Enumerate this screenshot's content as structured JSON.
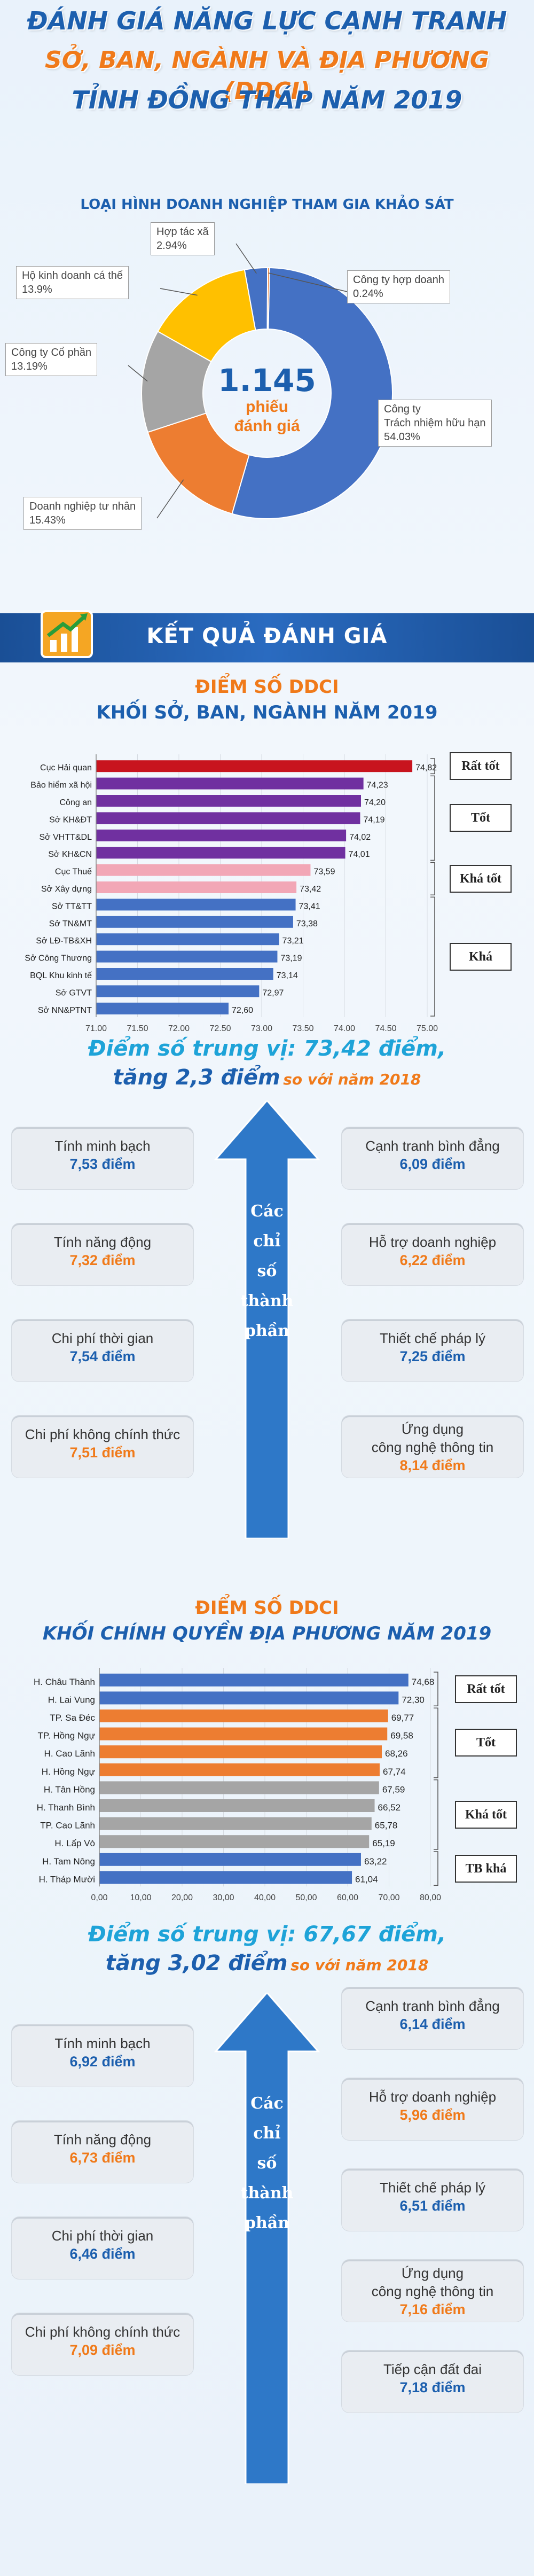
{
  "header": {
    "line1": "ĐÁNH GIÁ NĂNG LỰC CẠNH TRANH",
    "line2": "SỞ, BAN, NGÀNH  VÀ ĐỊA PHƯƠNG (DDCI)",
    "line3": "TỈNH ĐỒNG THÁP NĂM 2019"
  },
  "pie_section": {
    "title": "LOẠI HÌNH DOANH NGHIỆP THAM GIA KHẢO SÁT",
    "center_value": "1.145",
    "center_line1": "phiếu",
    "center_line2": "đánh giá"
  },
  "banner": {
    "label": "KẾT QUẢ ĐÁNH GIÁ"
  },
  "chart1_title": {
    "line1": "ĐIỂM SỐ DDCI",
    "line2": "KHỐI SỞ, BAN, NGÀNH NĂM 2019"
  },
  "chart1_ranks": [
    "Rất tốt",
    "Tốt",
    "Khá tốt",
    "Khá"
  ],
  "median1": {
    "main": "Điểm số trung vị: 73,42 điểm,",
    "sub1": "tăng 2,3 điểm",
    "sub2": "so với năm 2018"
  },
  "components1": {
    "arrow": [
      "Các",
      "chỉ",
      "số",
      "thành",
      "phần"
    ],
    "left": [
      {
        "name": "Tính minh bạch",
        "value": "7,53 điểm"
      },
      {
        "name": "Tính năng động",
        "value": "7,32 điểm"
      },
      {
        "name": "Chi phí thời gian",
        "value": "7,54 điểm"
      },
      {
        "name": "Chi phí không chính thức",
        "value": "7,51 điểm"
      }
    ],
    "right": [
      {
        "name": "Cạnh tranh bình đẳng",
        "value": "6,09 điểm"
      },
      {
        "name": "Hỗ trợ doanh nghiệp",
        "value": "6,22 điểm"
      },
      {
        "name": "Thiết chế pháp lý",
        "value": "7,25 điểm"
      },
      {
        "name": "Ứng dụng",
        "name2": "công nghệ thông tin",
        "value": "8,14 điểm"
      }
    ]
  },
  "chart2_title": {
    "line1": "ĐIỂM SỐ DDCI",
    "line2": "KHỐI CHÍNH QUYỀN ĐỊA PHƯƠNG NĂM 2019"
  },
  "chart2_ranks": [
    "Rất tốt",
    "Tốt",
    "Khá tốt",
    "TB khá"
  ],
  "median2": {
    "main": "Điểm số trung vị: 67,67 điểm,",
    "sub1": "tăng 3,02  điểm",
    "sub2": "so với năm 2018"
  },
  "components2": {
    "arrow": [
      "Các",
      "chỉ",
      "số",
      "thành",
      "phần"
    ],
    "left": [
      {
        "name": "Tính minh bạch",
        "value": "6,92 điểm"
      },
      {
        "name": "Tính năng động",
        "value": "6,73 điểm"
      },
      {
        "name": "Chi phí thời gian",
        "value": "6,46 điểm"
      },
      {
        "name": "Chi phí không chính thức",
        "value": "7,09 điểm"
      }
    ],
    "right": [
      {
        "name": "Cạnh tranh bình đẳng",
        "value": "6,14 điểm"
      },
      {
        "name": "Hỗ trợ doanh nghiệp",
        "value": "5,96 điểm"
      },
      {
        "name": "Thiết chế pháp lý",
        "value": "6,51 điểm"
      },
      {
        "name": "Ứng dụng",
        "name2": "công nghệ thông tin",
        "value": "7,16 điểm"
      },
      {
        "name": "Tiếp cận đất đai",
        "value": "7,18 điểm"
      }
    ]
  },
  "colors": {
    "blue": "#4471c4",
    "orange": "#ed7d31",
    "gray": "#a5a5a5",
    "yellow": "#ffc000",
    "red_bar": "#c8141e",
    "purple_bar": "#7030a0",
    "pink_bar": "#f2a7b6",
    "title_blue": "#1c5fae"
  },
  "chart_data": [
    {
      "type": "pie",
      "title": "LOẠI HÌNH DOANH NGHIỆP THAM GIA KHẢO SÁT",
      "slices": [
        {
          "label": "Công ty\nTrách nhiệm hữu hạn",
          "value": 54.03,
          "display": "54.03%",
          "color": "#4471c4"
        },
        {
          "label": "Doanh nghiệp tư nhân",
          "value": 15.43,
          "display": "15.43%",
          "color": "#ed7d31"
        },
        {
          "label": "Công ty Cổ phần",
          "value": 13.19,
          "display": "13.19%",
          "color": "#a5a5a5"
        },
        {
          "label": "Hộ kinh doanh cá thể",
          "value": 13.9,
          "display": "13.9%",
          "color": "#ffc000"
        },
        {
          "label": "Hợp tác xã",
          "value": 2.94,
          "display": "2.94%",
          "color": "#4471c4"
        },
        {
          "label": "Công ty hợp doanh",
          "value": 0.24,
          "display": "0.24%",
          "color": "#ed7d31"
        }
      ]
    },
    {
      "type": "bar",
      "orientation": "horizontal",
      "categories": [
        "Cục Hải quan",
        "Bảo hiểm xã hội",
        "Công an",
        "Sở KH&ĐT",
        "Sở VHTT&DL",
        "Sở KH&CN",
        "Cục Thuế",
        "Sở Xây dựng",
        "Sở TT&TT",
        "Sở TN&MT",
        "Sở LĐ-TB&XH",
        "Sở Công Thương",
        "BQL Khu kinh tế",
        "Sở GTVT",
        "Sở NN&PTNT"
      ],
      "values": [
        74.82,
        74.23,
        74.2,
        74.19,
        74.02,
        74.01,
        73.59,
        73.42,
        73.41,
        73.38,
        73.21,
        73.19,
        73.14,
        72.97,
        72.6
      ],
      "labels": [
        "74,82",
        "74,23",
        "74,20",
        "74,19",
        "74,02",
        "74,01",
        "73,59",
        "73,42",
        "73,41",
        "73,38",
        "73,21",
        "73,19",
        "73,14",
        "72,97",
        "72,60"
      ],
      "groups": [
        {
          "rank": "Rất tốt",
          "count": 1,
          "color": "#c8141e"
        },
        {
          "rank": "Tốt",
          "count": 5,
          "color": "#7030a0"
        },
        {
          "rank": "Khá tốt",
          "count": 2,
          "color": "#f2a7b6"
        },
        {
          "rank": "Khá",
          "count": 7,
          "color": "#4471c4"
        }
      ],
      "xlim": [
        71.0,
        75.0
      ],
      "xticks": [
        "71,00",
        "71,50",
        "72,00",
        "72,50",
        "73,00",
        "73,50",
        "74,00",
        "74,50",
        "75,00"
      ]
    },
    {
      "type": "bar",
      "orientation": "horizontal",
      "categories": [
        "H. Châu Thành",
        "H. Lai Vung",
        "TP. Sa Đéc",
        "TP. Hồng Ngự",
        "H. Cao Lãnh",
        "H. Hồng Ngự",
        "H. Tân Hồng",
        "H. Thanh Bình",
        "TP. Cao Lãnh",
        "H. Lấp Vò",
        "H. Tam Nông",
        "H. Tháp Mười"
      ],
      "values": [
        74.68,
        72.3,
        69.77,
        69.58,
        68.26,
        67.74,
        67.59,
        66.52,
        65.78,
        65.19,
        63.22,
        61.04
      ],
      "labels": [
        "74,68",
        "72,30",
        "69,77",
        "69,58",
        "68,26",
        "67,74",
        "67,59",
        "66,52",
        "65,78",
        "65,19",
        "63,22",
        "61,04"
      ],
      "groups": [
        {
          "rank": "Rất tốt",
          "count": 2,
          "color": "#4471c4"
        },
        {
          "rank": "Tốt",
          "count": 4,
          "color": "#ed7d31"
        },
        {
          "rank": "Khá tốt",
          "count": 4,
          "color": "#a5a5a5"
        },
        {
          "rank": "TB khá",
          "count": 2,
          "color": "#4471c4"
        }
      ],
      "xlim": [
        0,
        80
      ],
      "xticks": [
        "0,00",
        "10,00",
        "20,00",
        "30,00",
        "40,00",
        "50,00",
        "60,00",
        "70,00",
        "80,00"
      ]
    }
  ]
}
